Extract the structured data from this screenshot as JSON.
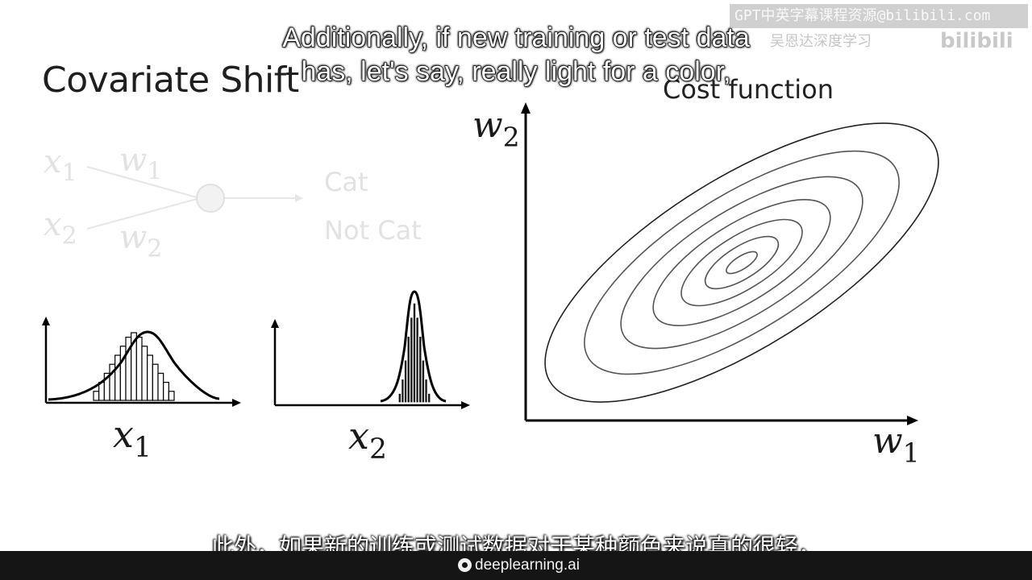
{
  "slide": {
    "title": "Covariate Shift",
    "cost_function_title": "Cost function",
    "network": {
      "input_1": "x",
      "input_1_sub": "1",
      "input_2": "x",
      "input_2_sub": "2",
      "weight_1": "w",
      "weight_1_sub": "1",
      "weight_2": "w",
      "weight_2_sub": "2",
      "output_1": "Cat",
      "output_2": "Not Cat"
    },
    "histogram_1": {
      "label": "x",
      "label_sub": "1",
      "bars": [
        2,
        4,
        6,
        8,
        10,
        12,
        14,
        15,
        14,
        12,
        10,
        8,
        6,
        4,
        2
      ]
    },
    "histogram_2": {
      "label": "x",
      "label_sub": "2",
      "bars": [
        2,
        5,
        9,
        14,
        18,
        21,
        18,
        14,
        9,
        5,
        2
      ]
    },
    "contour_plot": {
      "x_axis": "w",
      "x_axis_sub": "1",
      "y_axis": "w",
      "y_axis_sub": "2",
      "num_contours": 7
    }
  },
  "subtitles": {
    "english_line_1": "Additionally, if new training or test data",
    "english_line_2": "has, let's say, really light for a color,",
    "chinese": "此外，如果新的训练或测试数据对于某种颜色来说真的很轻，"
  },
  "watermark": {
    "text": "GPT中英字幕课程资源@bilibili.com",
    "text_2": "吴恩达深度学习",
    "logo": "bilibili"
  },
  "footer": {
    "brand": "deeplearning.ai"
  }
}
